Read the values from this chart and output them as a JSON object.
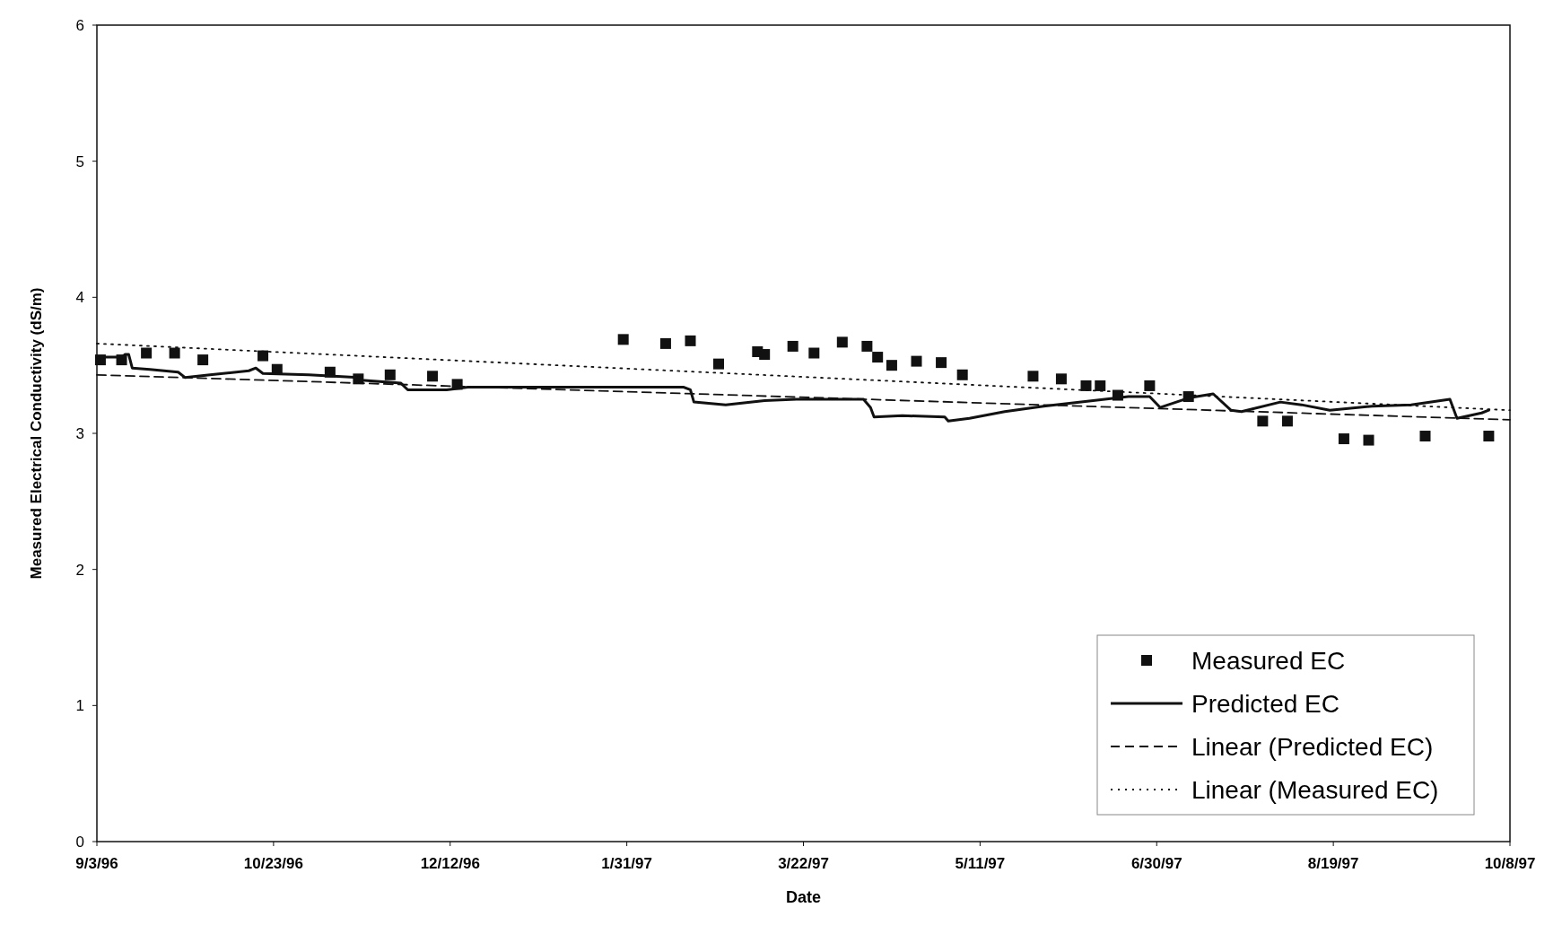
{
  "chart_data": {
    "type": "line",
    "xlabel": "Date",
    "ylabel": "Measured Electrical Conductivity (dS/m)",
    "xlim": [
      "1996-09-03",
      "1997-10-08"
    ],
    "xticks": [
      {
        "value": "1996-09-03",
        "label": "9/3/96"
      },
      {
        "value": "1996-10-23",
        "label": "10/23/96"
      },
      {
        "value": "1996-12-12",
        "label": "12/12/96"
      },
      {
        "value": "1997-01-31",
        "label": "1/31/97"
      },
      {
        "value": "1997-03-22",
        "label": "3/22/97"
      },
      {
        "value": "1997-05-11",
        "label": "5/11/97"
      },
      {
        "value": "1997-06-30",
        "label": "6/30/97"
      },
      {
        "value": "1997-08-19",
        "label": "8/19/97"
      },
      {
        "value": "1997-10-08",
        "label": "10/8/97"
      }
    ],
    "ylim": [
      0,
      6
    ],
    "yticks": [
      0,
      1,
      2,
      3,
      4,
      5,
      6
    ],
    "grid": false,
    "legend": "bottom right",
    "series": [
      {
        "name": "Measured EC",
        "type": "scatter",
        "marker": "square",
        "color": "#111111",
        "x": [
          "1996-09-04",
          "1996-09-10",
          "1996-09-17",
          "1996-09-25",
          "1996-10-03",
          "1996-10-20",
          "1996-10-24",
          "1996-11-08",
          "1996-11-16",
          "1996-11-25",
          "1996-12-07",
          "1996-12-14",
          "1997-01-30",
          "1997-02-11",
          "1997-02-18",
          "1997-02-26",
          "1997-03-09",
          "1997-03-11",
          "1997-03-19",
          "1997-03-25",
          "1997-04-02",
          "1997-04-09",
          "1997-04-12",
          "1997-04-16",
          "1997-04-23",
          "1997-04-30",
          "1997-05-06",
          "1997-05-26",
          "1997-06-03",
          "1997-06-10",
          "1997-06-14",
          "1997-06-19",
          "1997-06-28",
          "1997-07-09",
          "1997-07-30",
          "1997-08-06",
          "1997-08-22",
          "1997-08-29",
          "1997-09-14",
          "1997-10-02"
        ],
        "values": [
          3.54,
          3.54,
          3.59,
          3.59,
          3.54,
          3.57,
          3.47,
          3.45,
          3.4,
          3.43,
          3.42,
          3.36,
          3.69,
          3.66,
          3.68,
          3.51,
          3.6,
          3.58,
          3.64,
          3.59,
          3.67,
          3.64,
          3.56,
          3.5,
          3.53,
          3.52,
          3.43,
          3.42,
          3.4,
          3.35,
          3.35,
          3.28,
          3.35,
          3.27,
          3.09,
          3.09,
          2.96,
          2.95,
          2.98,
          2.98
        ]
      },
      {
        "name": "Predicted EC",
        "line_style": "solid",
        "marker": "none",
        "color": "#111111",
        "x": [
          "1996-09-03",
          "1996-09-10",
          "1996-09-11",
          "1996-09-12",
          "1996-09-13",
          "1996-09-18",
          "1996-09-26",
          "1996-09-28",
          "1996-10-05",
          "1996-10-16",
          "1996-10-18",
          "1996-10-20",
          "1996-11-02",
          "1996-11-16",
          "1996-11-17",
          "1996-11-28",
          "1996-11-30",
          "1996-12-11",
          "1996-12-17",
          "1997-02-16",
          "1997-02-18",
          "1997-02-19",
          "1997-02-28",
          "1997-03-11",
          "1997-03-20",
          "1997-04-08",
          "1997-04-10",
          "1997-04-11",
          "1997-04-19",
          "1997-05-01",
          "1997-05-02",
          "1997-05-08",
          "1997-05-18",
          "1997-05-29",
          "1997-06-12",
          "1997-06-22",
          "1997-06-28",
          "1997-07-01",
          "1997-07-09",
          "1997-07-16",
          "1997-07-21",
          "1997-07-24",
          "1997-08-04",
          "1997-08-10",
          "1997-08-18",
          "1997-08-30",
          "1997-09-10",
          "1997-09-21",
          "1997-09-23",
          "1997-09-30",
          "1997-10-02"
        ],
        "values": [
          3.56,
          3.56,
          3.58,
          3.58,
          3.48,
          3.47,
          3.45,
          3.41,
          3.43,
          3.46,
          3.48,
          3.44,
          3.43,
          3.41,
          3.39,
          3.37,
          3.32,
          3.32,
          3.34,
          3.34,
          3.32,
          3.23,
          3.21,
          3.24,
          3.25,
          3.25,
          3.19,
          3.12,
          3.13,
          3.12,
          3.09,
          3.11,
          3.16,
          3.2,
          3.24,
          3.27,
          3.27,
          3.19,
          3.26,
          3.29,
          3.17,
          3.16,
          3.23,
          3.21,
          3.17,
          3.2,
          3.21,
          3.25,
          3.11,
          3.15,
          3.17
        ]
      },
      {
        "name": "Linear (Predicted EC)",
        "line_style": "dashed",
        "marker": "none",
        "color": "#111111",
        "x": [
          "1996-09-03",
          "1997-10-08"
        ],
        "values": [
          3.43,
          3.1
        ]
      },
      {
        "name": "Linear (Measured EC)",
        "line_style": "dotted",
        "marker": "none",
        "color": "#111111",
        "x": [
          "1996-09-03",
          "1997-10-08"
        ],
        "values": [
          3.66,
          3.17
        ]
      }
    ]
  }
}
